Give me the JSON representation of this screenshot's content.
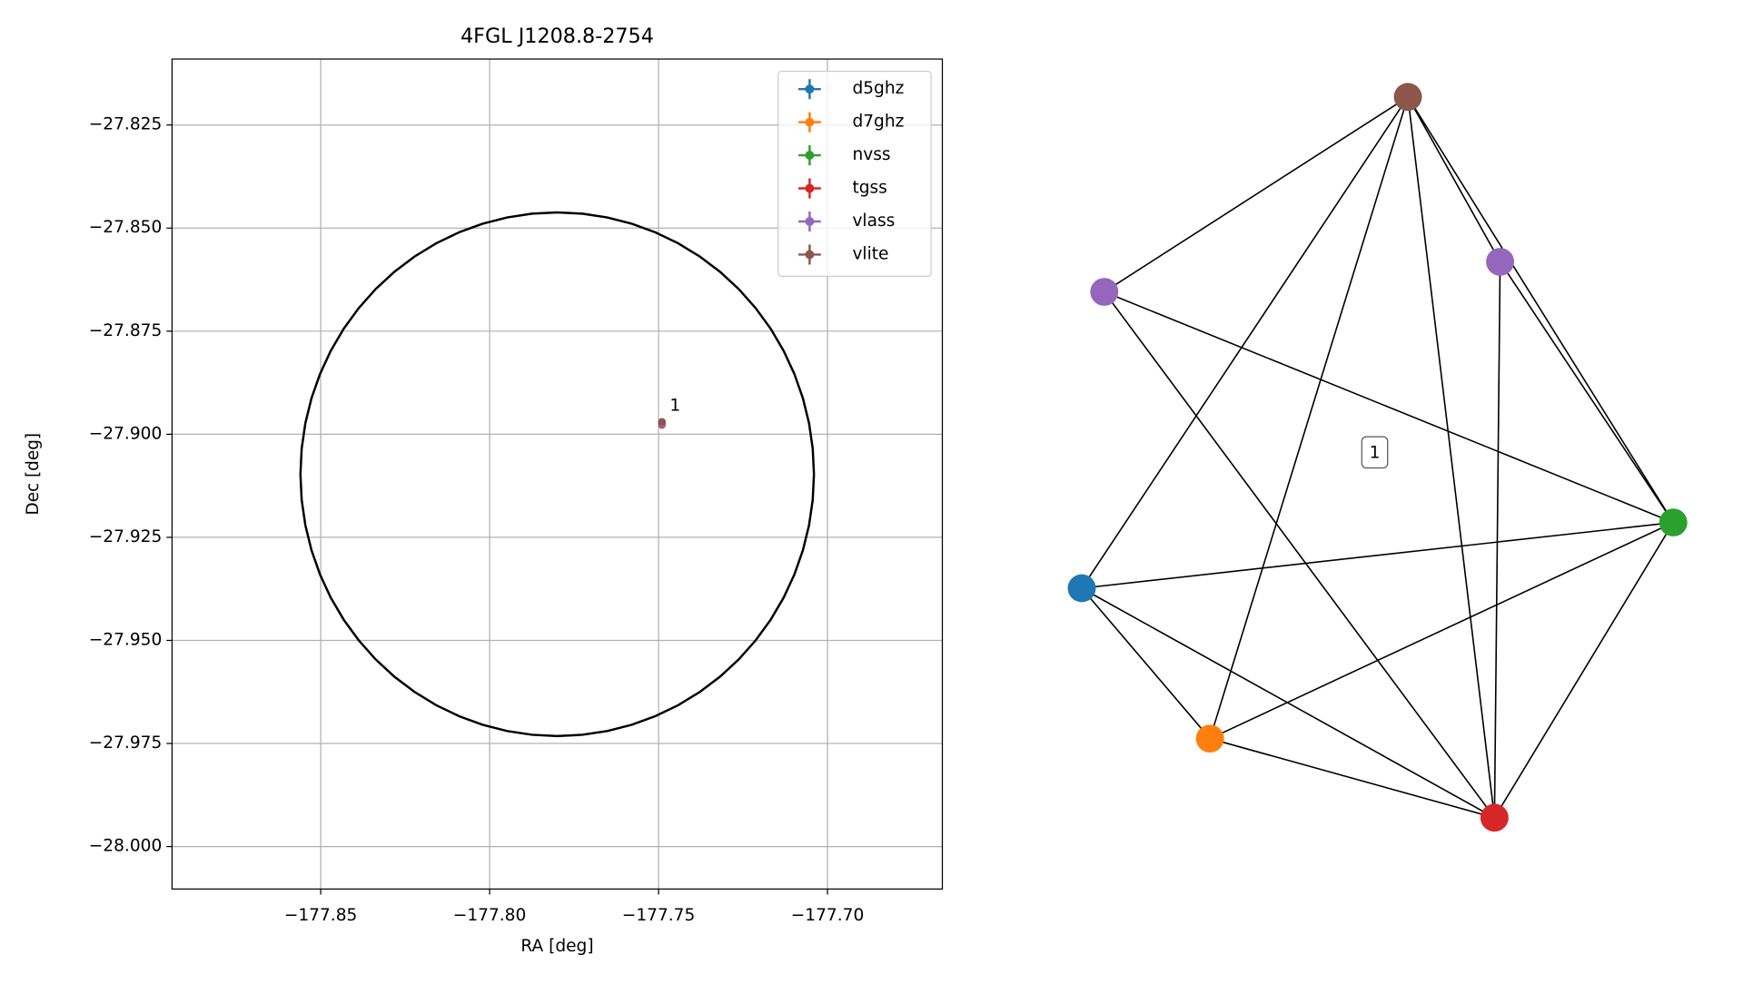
{
  "chart_data": [
    {
      "type": "scatter",
      "title": "4FGL J1208.8-2754",
      "xlabel": "RA [deg]",
      "ylabel": "Dec [deg]",
      "xlim": [
        -177.894,
        -177.666
      ],
      "ylim": [
        -28.0103,
        -27.809
      ],
      "xticks": [
        {
          "value": -177.85,
          "label": "−177.85"
        },
        {
          "value": -177.8,
          "label": "−177.80"
        },
        {
          "value": -177.75,
          "label": "−177.75"
        },
        {
          "value": -177.7,
          "label": "−177.70"
        }
      ],
      "yticks": [
        {
          "value": -27.825,
          "label": "−27.825"
        },
        {
          "value": -27.85,
          "label": "−27.850"
        },
        {
          "value": -27.875,
          "label": "−27.875"
        },
        {
          "value": -27.9,
          "label": "−27.900"
        },
        {
          "value": -27.925,
          "label": "−27.925"
        },
        {
          "value": -27.95,
          "label": "−27.950"
        },
        {
          "value": -27.975,
          "label": "−27.975"
        },
        {
          "value": -28.0,
          "label": "−28.000"
        }
      ],
      "grid": true,
      "legend": "upper right",
      "region": {
        "center_x": -177.78,
        "center_y": -27.9097,
        "radius_x": 0.076,
        "radius_y": 0.0635,
        "color": "#000000"
      },
      "series": [
        {
          "name": "d5ghz",
          "color": "#1f77b4",
          "x": [
            -177.749
          ],
          "values": [
            -27.8975
          ]
        },
        {
          "name": "d7ghz",
          "color": "#ff7f0e",
          "x": [
            -177.749
          ],
          "values": [
            -27.8975
          ]
        },
        {
          "name": "nvss",
          "color": "#2ca02c",
          "x": [
            -177.749
          ],
          "values": [
            -27.8975
          ]
        },
        {
          "name": "tgss",
          "color": "#d62728",
          "x": [
            -177.749
          ],
          "values": [
            -27.8977
          ]
        },
        {
          "name": "vlass",
          "color": "#9467bd",
          "x": [
            -177.749
          ],
          "values": [
            -27.8975
          ]
        },
        {
          "name": "vlite",
          "color": "#8c564b",
          "x": [
            -177.749
          ],
          "values": [
            -27.897
          ]
        }
      ],
      "annotation": "1"
    },
    {
      "type": "network",
      "label": "1",
      "nodes": [
        {
          "color": "#8c564b"
        },
        {
          "color": "#9467bd"
        },
        {
          "color": "#9467bd"
        },
        {
          "color": "#2ca02c"
        },
        {
          "color": "#1f77b4"
        },
        {
          "color": "#ff7f0e"
        },
        {
          "color": "#d62728"
        }
      ],
      "edges": [
        [
          0,
          1
        ],
        [
          0,
          2
        ],
        [
          0,
          3
        ],
        [
          0,
          4
        ],
        [
          0,
          5
        ],
        [
          0,
          6
        ],
        [
          1,
          3
        ],
        [
          1,
          6
        ],
        [
          2,
          3
        ],
        [
          2,
          6
        ],
        [
          3,
          4
        ],
        [
          3,
          5
        ],
        [
          3,
          6
        ],
        [
          4,
          5
        ],
        [
          4,
          6
        ],
        [
          5,
          6
        ]
      ]
    }
  ]
}
